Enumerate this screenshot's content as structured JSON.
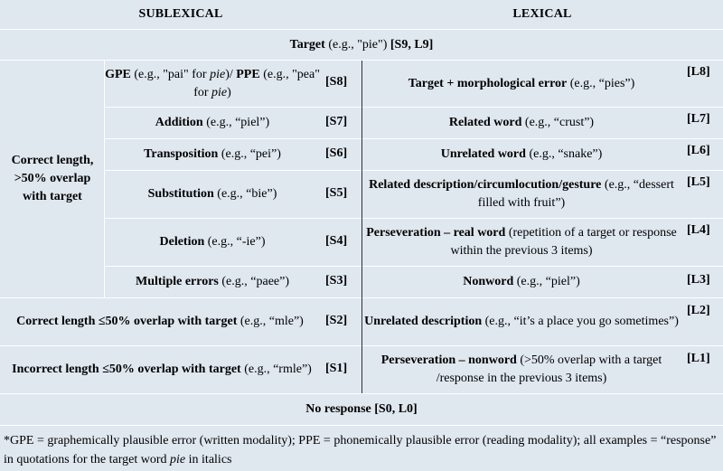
{
  "headers": {
    "sublexical": "SUBLEXICAL",
    "lexical": "LEXICAL"
  },
  "target_row": {
    "label": "Target",
    "text": " (e.g., \"pie\") ",
    "code": "[S9, L9]"
  },
  "group_label": "Correct length, >50% overlap with target",
  "sublexical_rows": [
    {
      "label": "GPE",
      "text1": " (e.g., \"pai\" for ",
      "italic1": "pie",
      "text2": ")/ ",
      "label2": "PPE",
      "text3": " (e.g., \"pea\" for ",
      "italic2": "pie",
      "text4": ")",
      "code": "[S8]"
    },
    {
      "label": "Addition",
      "text": " (e.g., “piel”)",
      "code": "[S7]"
    },
    {
      "label": "Transposition",
      "text": " (e.g., “pei”)",
      "code": "[S6]"
    },
    {
      "label": "Substitution",
      "text": " (e.g., “bie”)",
      "code": "[S5]"
    },
    {
      "label": "Deletion",
      "text": " (e.g., “-ie”)",
      "code": "[S4]"
    },
    {
      "label": "Multiple errors",
      "text": " (e.g., “paee”)",
      "code": "[S3]"
    },
    {
      "label": "Correct length ≤50% overlap with target",
      "text": " (e.g., “mle”)",
      "code": "[S2]"
    },
    {
      "label": "Incorrect length ≤50% overlap with target",
      "text": " (e.g., “rmle”)",
      "code": "[S1]"
    }
  ],
  "lexical_rows": [
    {
      "label": "Target + morphological error",
      "text": " (e.g., “pies”)",
      "code": "[L8]"
    },
    {
      "label": "Related word",
      "text": " (e.g., “crust”)",
      "code": "[L7]"
    },
    {
      "label": "Unrelated word",
      "text": " (e.g., “snake”)",
      "code": "[L6]"
    },
    {
      "label": "Related description/circumlocution/gesture",
      "text": " (e.g., “dessert filled with fruit”)",
      "code": "[L5]"
    },
    {
      "label": "Perseveration – real word",
      "text": " (repetition of a target or response within the previous 3 items)",
      "code": "[L4]"
    },
    {
      "label": "Nonword",
      "text": " (e.g., “piel”)",
      "code": "[L3]"
    },
    {
      "label": "Unrelated description",
      "text": " (e.g., “it’s a place you go sometimes”)",
      "code": "[L2]"
    },
    {
      "label": "Perseveration – nonword",
      "text": " (>50% overlap with a target /response in the previous 3 items)",
      "code": "[L1]"
    }
  ],
  "no_response": "No response [S0, L0]",
  "footnote": {
    "star": "*",
    "gpe": "GPE",
    "text1": " = graphemically plausible error (written modality); PPE = phonemically plausible error (reading modality); all examples = “response” in quotations for the target word ",
    "italic": "pie",
    "text2": " in italics"
  }
}
